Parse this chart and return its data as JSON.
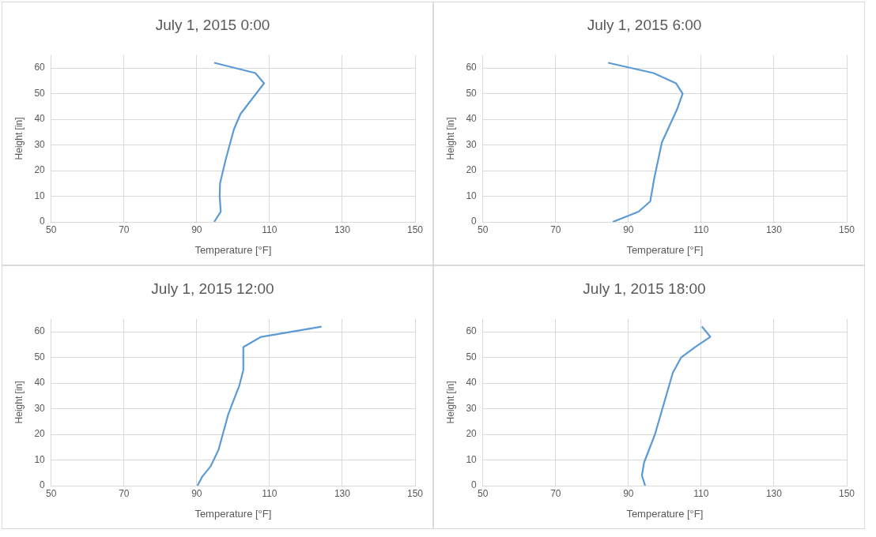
{
  "chart_data": [
    {
      "type": "line",
      "title": "July 1, 2015 0:00",
      "xlabel": "Temperature [°F]",
      "ylabel": "Height [in]",
      "color": "#5b9bd5",
      "marker": "none",
      "grid": true,
      "xlim": [
        50,
        150
      ],
      "xticks": [
        50,
        70,
        90,
        110,
        130,
        150
      ],
      "ylim": [
        0,
        65
      ],
      "yticks": [
        0,
        10,
        20,
        30,
        40,
        50,
        60
      ],
      "x": [
        94.8,
        96.6,
        96.3,
        96.4,
        97.9,
        100.2,
        102,
        108.5,
        106.1,
        94.8
      ],
      "values": [
        0,
        4,
        10,
        15,
        24,
        36,
        42,
        54,
        58,
        62
      ]
    },
    {
      "type": "line",
      "title": "July 1, 2015 6:00",
      "xlabel": "Temperature [°F]",
      "ylabel": "Height [in]",
      "color": "#5b9bd5",
      "marker": "none",
      "grid": true,
      "xlim": [
        50,
        150
      ],
      "xticks": [
        50,
        70,
        90,
        110,
        130,
        150
      ],
      "ylim": [
        0,
        65
      ],
      "yticks": [
        0,
        10,
        20,
        30,
        40,
        50,
        60
      ],
      "x": [
        85.7,
        92.8,
        96,
        97.1,
        99.2,
        103.4,
        104.9,
        103.1,
        96.9,
        84.4
      ],
      "values": [
        0,
        4,
        8,
        17,
        31,
        44,
        50,
        54,
        58,
        62
      ]
    },
    {
      "type": "line",
      "title": "July 1, 2015 12:00",
      "xlabel": "Temperature [°F]",
      "ylabel": "Height [in]",
      "color": "#5b9bd5",
      "marker": "none",
      "grid": true,
      "xlim": [
        50,
        150
      ],
      "xticks": [
        50,
        70,
        90,
        110,
        130,
        150
      ],
      "ylim": [
        0,
        65
      ],
      "yticks": [
        0,
        10,
        20,
        30,
        40,
        50,
        60
      ],
      "x": [
        90.2,
        91.5,
        93.8,
        96,
        98.7,
        101.7,
        102.8,
        102.8,
        107.7,
        124.3
      ],
      "values": [
        0,
        3.5,
        7.5,
        14,
        28,
        39,
        45,
        54,
        58,
        62
      ]
    },
    {
      "type": "line",
      "title": "July 1, 2015 18:00",
      "xlabel": "Temperature [°F]",
      "ylabel": "Height [in]",
      "color": "#5b9bd5",
      "marker": "none",
      "grid": true,
      "xlim": [
        50,
        150
      ],
      "xticks": [
        50,
        70,
        90,
        110,
        130,
        150
      ],
      "ylim": [
        0,
        65
      ],
      "yticks": [
        0,
        10,
        20,
        30,
        40,
        50,
        60
      ],
      "x": [
        94.6,
        93.7,
        94.3,
        97.3,
        102.2,
        104.5,
        108.3,
        112.5,
        110.2
      ],
      "values": [
        0,
        4,
        9,
        20,
        44,
        50,
        54,
        58,
        62
      ]
    }
  ]
}
